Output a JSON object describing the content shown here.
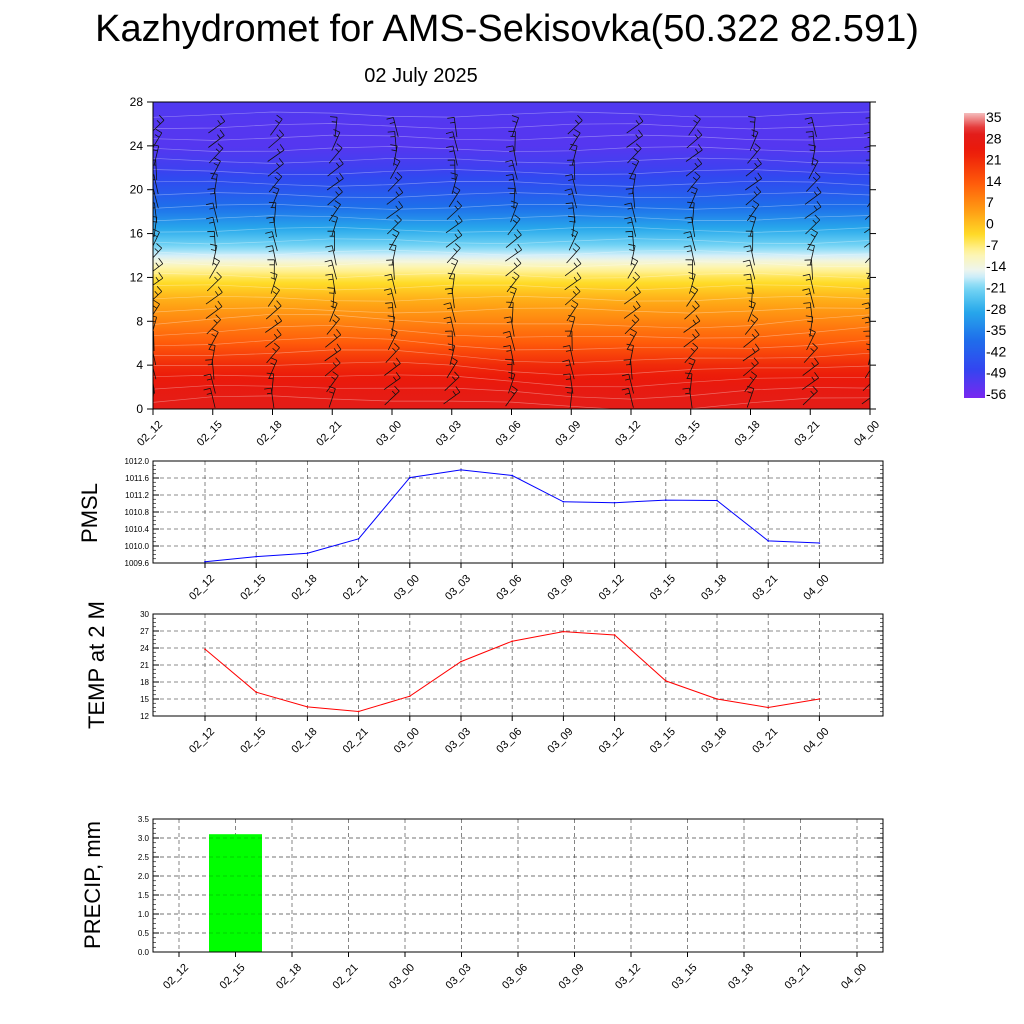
{
  "title": "Kazhydromet for AMS-Sekisovka(50.322 82.591)",
  "subtitle": "02 July 2025",
  "time_labels": [
    "02_12",
    "02_15",
    "02_18",
    "02_21",
    "03_00",
    "03_03",
    "03_06",
    "03_09",
    "03_12",
    "03_15",
    "03_18",
    "03_21",
    "04_00"
  ],
  "colorbar_labels": [
    "35",
    "28",
    "21",
    "14",
    "7",
    "0",
    "-7",
    "-14",
    "-21",
    "-28",
    "-35",
    "-42",
    "-49",
    "-56"
  ],
  "chart_data": [
    {
      "type": "heatmap",
      "title": "",
      "x": [
        "02_12",
        "02_15",
        "02_18",
        "02_21",
        "03_00",
        "03_03",
        "03_06",
        "03_09",
        "03_12",
        "03_15",
        "03_18",
        "03_21",
        "04_00"
      ],
      "ylim": [
        0,
        28
      ],
      "yticks": [
        0,
        4,
        8,
        12,
        16,
        20,
        24,
        28
      ],
      "colorbar_ticks": [
        35,
        28,
        21,
        14,
        7,
        0,
        -7,
        -14,
        -21,
        -28,
        -35,
        -42,
        -49,
        -56
      ],
      "colorbar_range": [
        -60,
        38
      ],
      "temperature_profile": {
        "heights": [
          0,
          2,
          4,
          6,
          8,
          10,
          12,
          13,
          14,
          16,
          18,
          20,
          22,
          24,
          26,
          28
        ],
        "values": [
          30,
          27,
          22,
          14,
          8,
          2,
          -6,
          -11,
          -18,
          -28,
          -38,
          -46,
          -52,
          -55,
          -55,
          -54
        ]
      },
      "wind_barbs": "shown"
    },
    {
      "type": "line",
      "ylabel": "PMSL",
      "ylim": [
        1009.6,
        1012.0
      ],
      "yticks": [
        "1009.6",
        "1010.0",
        "1010.4",
        "1010.8",
        "1011.2",
        "1011.6",
        "1012.0"
      ],
      "x": [
        "02_12",
        "02_15",
        "02_18",
        "02_21",
        "03_00",
        "03_03",
        "03_06",
        "03_09",
        "03_12",
        "03_15",
        "03_18",
        "03_21",
        "04_00"
      ],
      "series": [
        {
          "values": [
            1009.63,
            1009.75,
            1009.83,
            1010.17,
            1011.61,
            1011.79,
            1011.66,
            1011.04,
            1011.02,
            1011.08,
            1011.07,
            1010.12,
            1010.07
          ],
          "color": "#0000ff"
        }
      ],
      "grid": true
    },
    {
      "type": "line",
      "ylabel": "TEMP at 2 M",
      "ylim": [
        12,
        30
      ],
      "yticks": [
        "12",
        "15",
        "18",
        "21",
        "24",
        "27",
        "30"
      ],
      "x": [
        "02_12",
        "02_15",
        "02_18",
        "02_21",
        "03_00",
        "03_03",
        "03_06",
        "03_09",
        "03_12",
        "03_15",
        "03_18",
        "03_21",
        "04_00"
      ],
      "series": [
        {
          "values": [
            23.8,
            16.2,
            13.6,
            12.8,
            15.5,
            21.6,
            25.2,
            26.9,
            26.3,
            18.2,
            15.0,
            13.5,
            15.0
          ],
          "color": "#ff0000"
        }
      ],
      "grid": true
    },
    {
      "type": "bar",
      "ylabel": "PRECIP, mm",
      "ylim": [
        0,
        3.5
      ],
      "yticks": [
        "0.0",
        "0.5",
        "1.0",
        "1.5",
        "2.0",
        "2.5",
        "3.0",
        "3.5"
      ],
      "categories": [
        "02_12",
        "02_15",
        "02_18",
        "02_21",
        "03_00",
        "03_03",
        "03_06",
        "03_09",
        "03_12",
        "03_15",
        "03_18",
        "03_21",
        "04_00"
      ],
      "values": [
        0,
        3.1,
        0,
        0,
        0,
        0,
        0,
        0,
        0,
        0,
        0,
        0,
        0
      ],
      "color": "#00ff00",
      "grid": true
    }
  ]
}
